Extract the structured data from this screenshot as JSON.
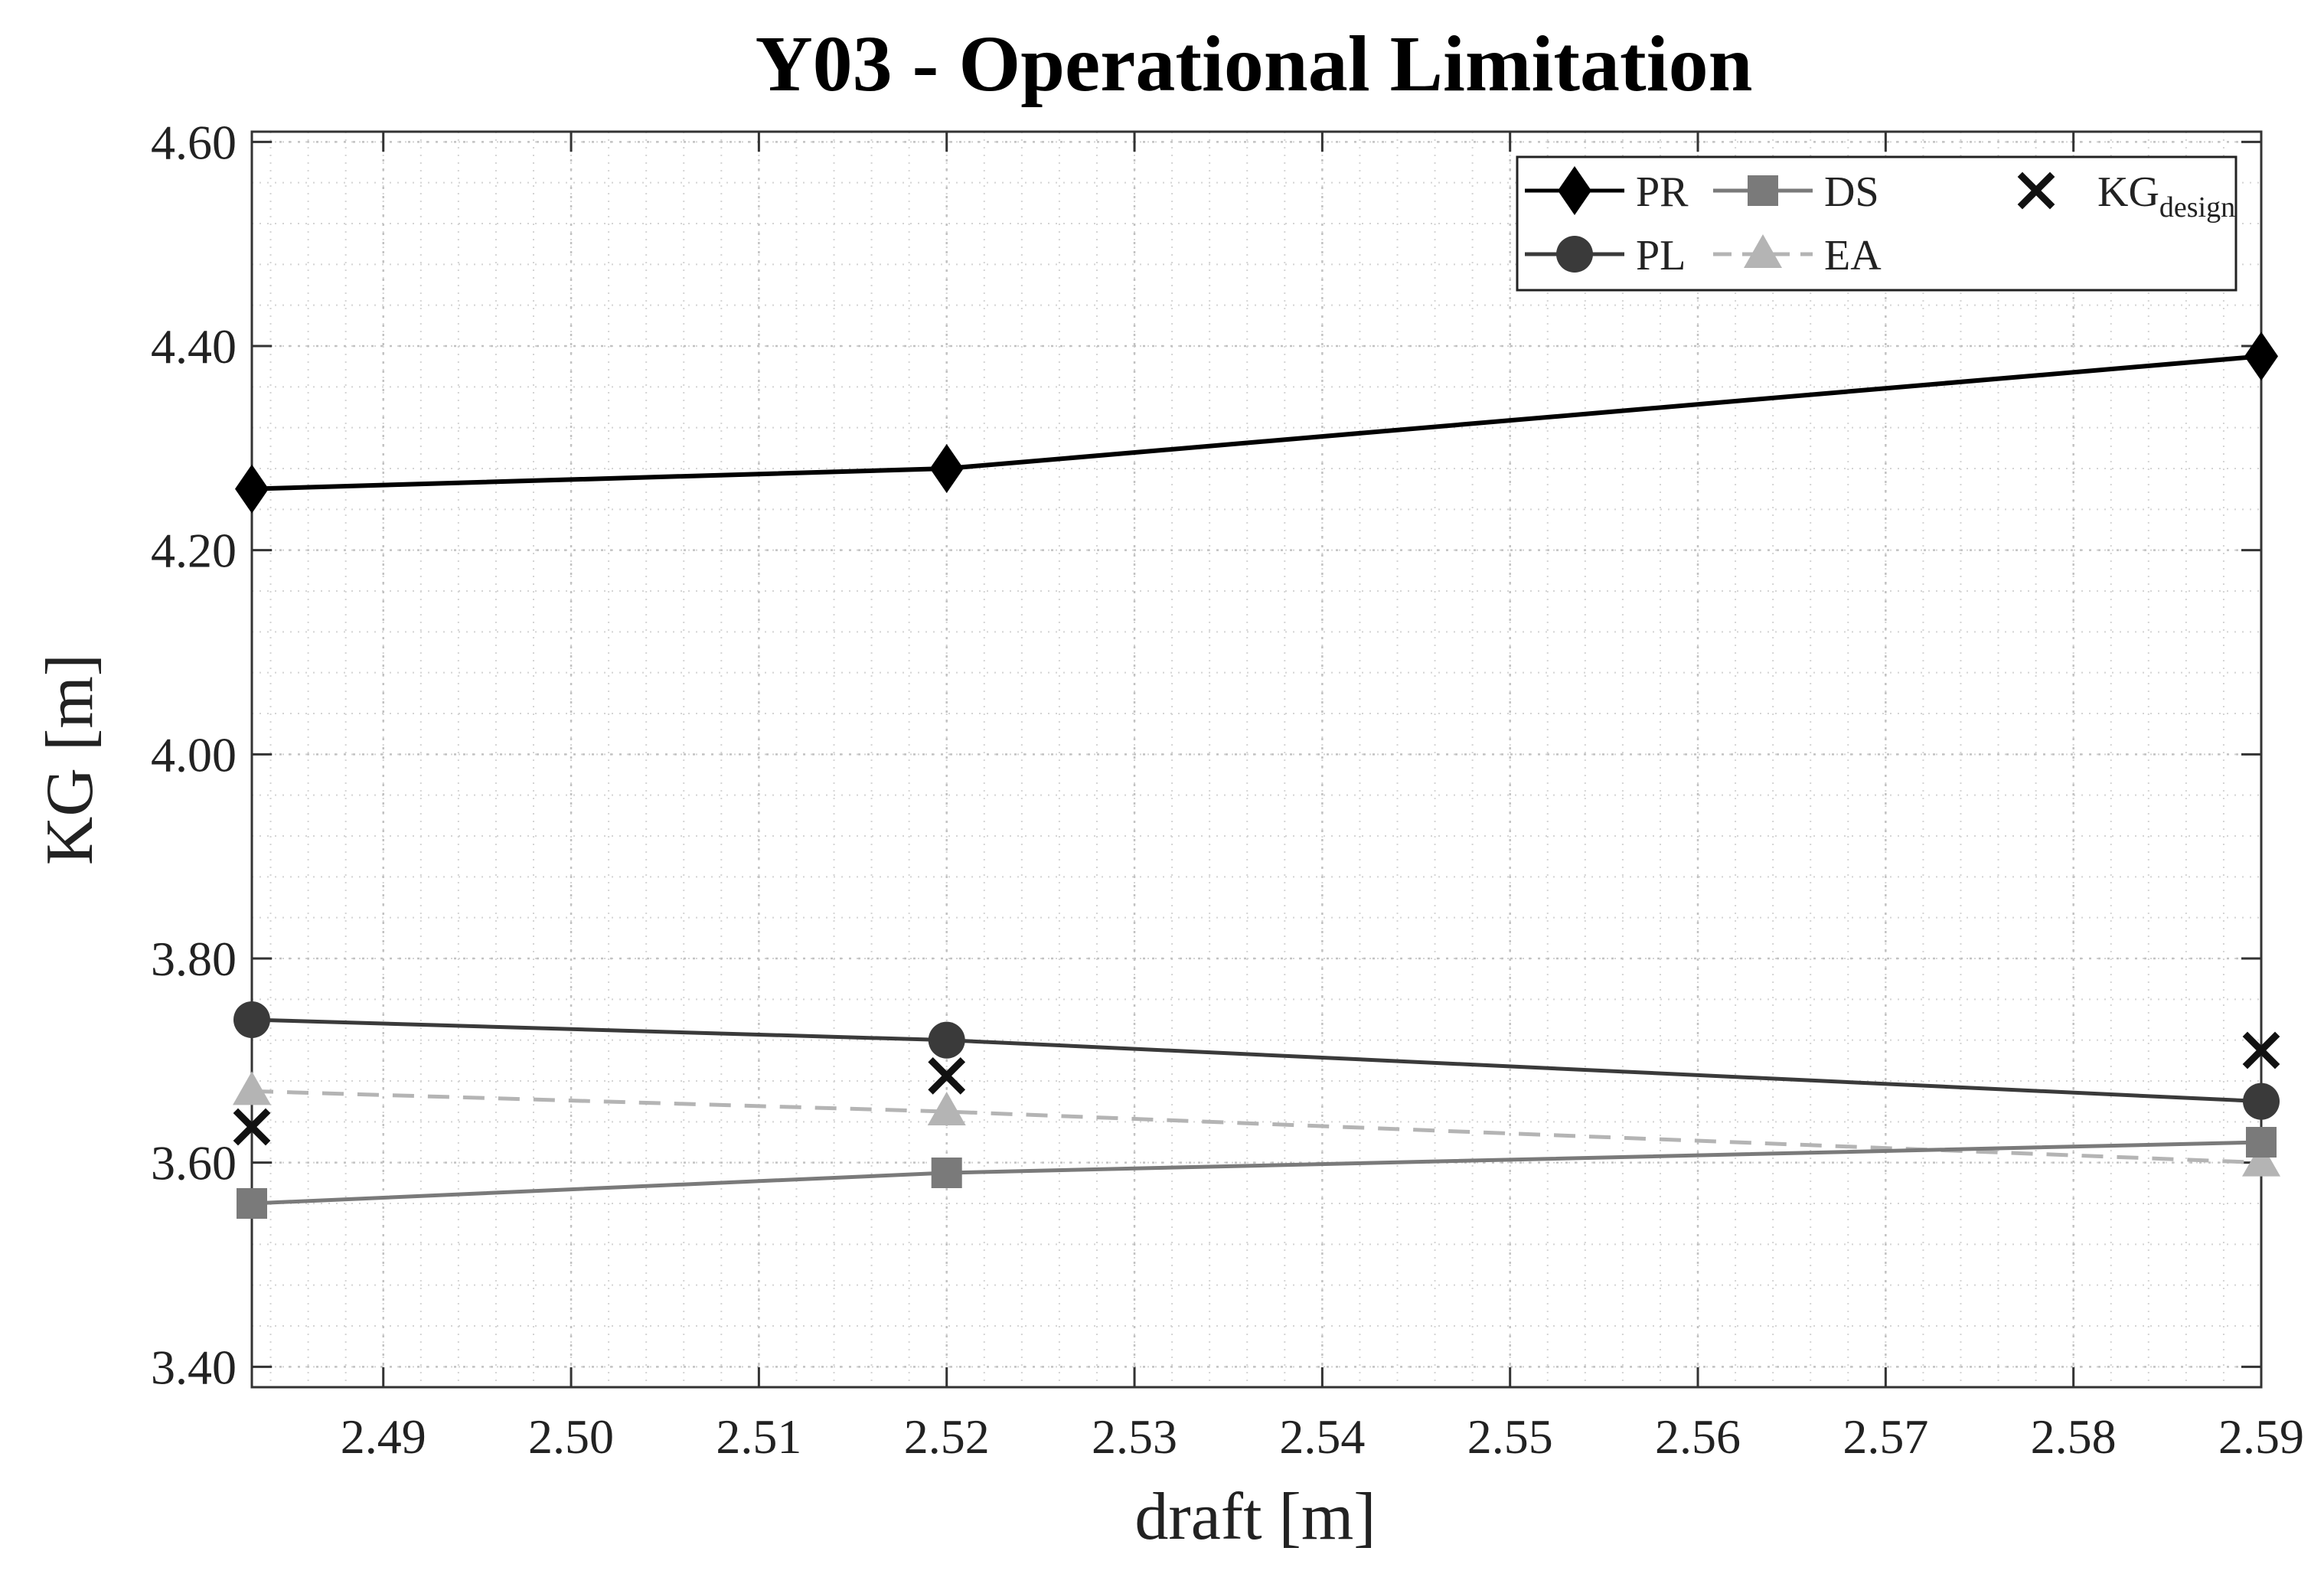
{
  "chart_data": {
    "type": "line",
    "title": "Y03 - Operational Limitation",
    "xlabel": "draft [m]",
    "ylabel": "KG [m]",
    "xlim": [
      2.483,
      2.59
    ],
    "ylim": [
      3.38,
      4.61
    ],
    "grid": true,
    "minor_grid": true,
    "legend_position": "top-right",
    "x_ticks": [
      {
        "value": 2.49,
        "label": "2.49"
      },
      {
        "value": 2.5,
        "label": "2.50"
      },
      {
        "value": 2.51,
        "label": "2.51"
      },
      {
        "value": 2.52,
        "label": "2.52"
      },
      {
        "value": 2.53,
        "label": "2.53"
      },
      {
        "value": 2.54,
        "label": "2.54"
      },
      {
        "value": 2.55,
        "label": "2.55"
      },
      {
        "value": 2.56,
        "label": "2.56"
      },
      {
        "value": 2.57,
        "label": "2.57"
      },
      {
        "value": 2.58,
        "label": "2.58"
      },
      {
        "value": 2.59,
        "label": "2.59"
      }
    ],
    "y_ticks": [
      {
        "value": 3.4,
        "label": "3.40"
      },
      {
        "value": 3.6,
        "label": "3.60"
      },
      {
        "value": 3.8,
        "label": "3.80"
      },
      {
        "value": 4.0,
        "label": "4.00"
      },
      {
        "value": 4.2,
        "label": "4.20"
      },
      {
        "value": 4.4,
        "label": "4.40"
      },
      {
        "value": 4.6,
        "label": "4.60"
      }
    ],
    "series": [
      {
        "name": "PR",
        "marker": "diamond",
        "line": "solid",
        "color": "#000000",
        "x": [
          2.483,
          2.52,
          2.59
        ],
        "y": [
          4.26,
          4.28,
          4.39
        ]
      },
      {
        "name": "PL",
        "marker": "circle",
        "line": "solid",
        "color": "#3a3a3a",
        "x": [
          2.483,
          2.52,
          2.59
        ],
        "y": [
          3.74,
          3.72,
          3.66
        ]
      },
      {
        "name": "DS",
        "marker": "square",
        "line": "solid",
        "color": "#7a7a7a",
        "x": [
          2.483,
          2.52,
          2.59
        ],
        "y": [
          3.56,
          3.59,
          3.62
        ]
      },
      {
        "name": "EA",
        "marker": "triangle",
        "line": "dashed",
        "color": "#b4b4b4",
        "x": [
          2.483,
          2.52,
          2.59
        ],
        "y": [
          3.67,
          3.65,
          3.6
        ]
      },
      {
        "name": "KG",
        "name_subscript": "design",
        "marker": "x",
        "line": "none",
        "color": "#111111",
        "x": [
          2.483,
          2.52,
          2.59
        ],
        "y": [
          3.635,
          3.685,
          3.71
        ]
      }
    ],
    "legend_layout": [
      {
        "series": "PR",
        "row": 0,
        "col": 0
      },
      {
        "series": "DS",
        "row": 0,
        "col": 1
      },
      {
        "series": "KG",
        "row": 0,
        "col": 2
      },
      {
        "series": "PL",
        "row": 1,
        "col": 0
      },
      {
        "series": "EA",
        "row": 1,
        "col": 1
      }
    ]
  }
}
